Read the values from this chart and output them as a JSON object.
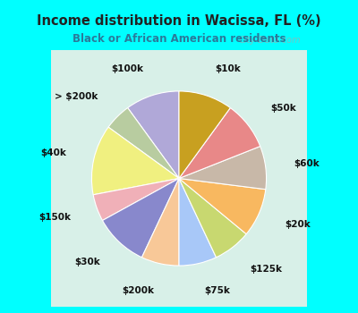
{
  "title": "Income distribution in Wacissa, FL (%)",
  "subtitle": "Black or African American residents",
  "outer_bg": "#00ffff",
  "chart_bg": "#d8f0e8",
  "title_color": "#222222",
  "subtitle_color": "#2a7a9a",
  "labels": [
    "$100k",
    "> $200k",
    "$40k",
    "$150k",
    "$30k",
    "$200k",
    "$75k",
    "$125k",
    "$20k",
    "$60k",
    "$50k",
    "$10k"
  ],
  "values": [
    10,
    5,
    13,
    5,
    10,
    7,
    7,
    7,
    9,
    8,
    9,
    10
  ],
  "colors": [
    "#b0a8d8",
    "#b8ccA0",
    "#f0f080",
    "#f0b0b8",
    "#8888cc",
    "#f8c898",
    "#a8c8f8",
    "#c8d870",
    "#f8b860",
    "#c8b8a8",
    "#e88888",
    "#c8a020"
  ],
  "startangle": 90,
  "labeldistance": 1.32,
  "watermark": "City-Data.com",
  "label_fontsize": 7.5
}
